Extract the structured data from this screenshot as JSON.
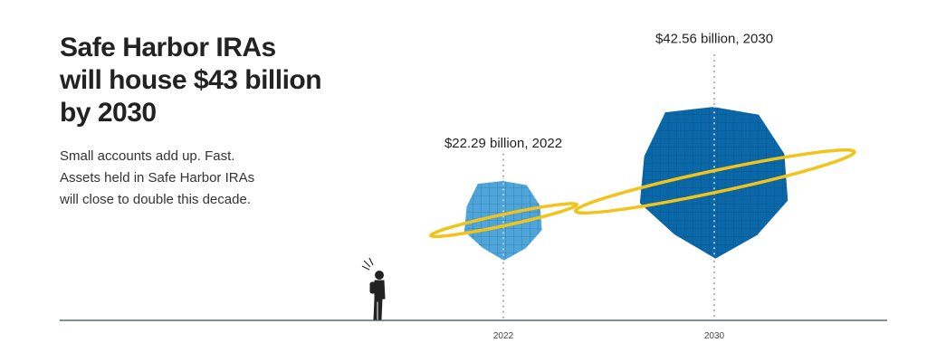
{
  "chart_data": {
    "type": "planet",
    "title_lines": [
      "Safe Harbor IRAs",
      "will house $43 billion",
      "by 2030"
    ],
    "subtitle_lines": [
      "Small accounts add up. Fast.",
      "Assets held in Safe Harbor IRAs",
      "will close to double this decade."
    ],
    "categories": [
      "2022",
      "2030"
    ],
    "values": [
      22.29,
      42.56
    ],
    "value_labels": [
      "$22.29 billion, 2022",
      "$42.56 billion, 2030"
    ],
    "colors": [
      "#4ea5d9",
      "#0a68a8"
    ],
    "ring_color": "#f2c318"
  }
}
